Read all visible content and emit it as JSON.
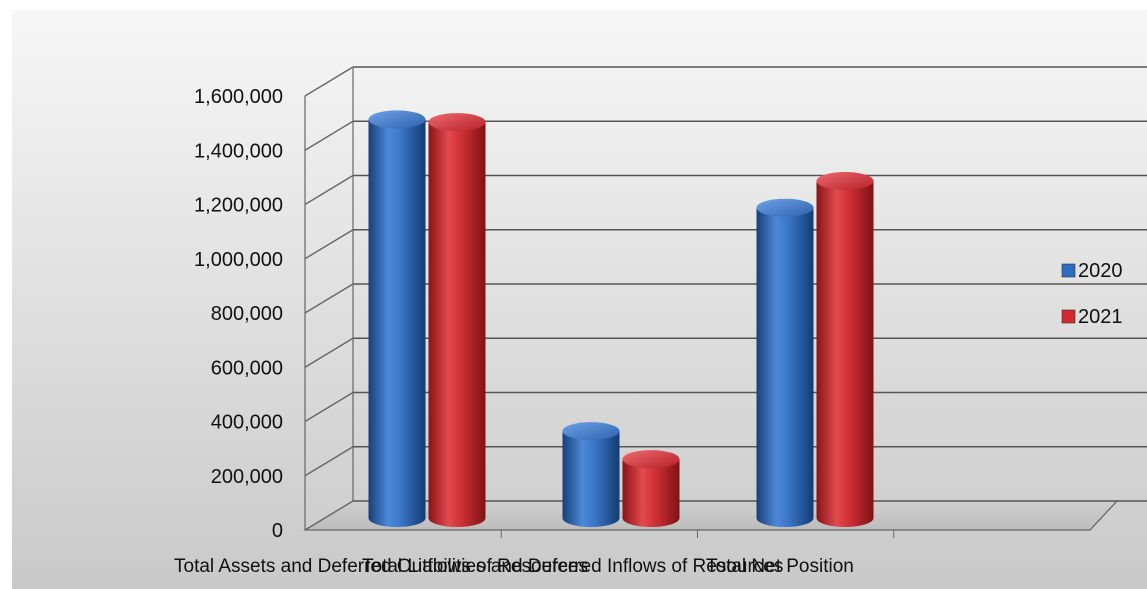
{
  "chart_data": {
    "type": "bar",
    "categories": [
      "Total Assets and Deferred Outflows of Resources",
      "Total Liabilities and Deferred Inflows of Resources",
      "Total Net Position"
    ],
    "series": [
      {
        "name": "2020",
        "values": [
          1490000,
          325000,
          1160000
        ],
        "color": "#2f6bbf"
      },
      {
        "name": "2021",
        "values": [
          1480000,
          220000,
          1260000
        ],
        "color": "#d02a30"
      }
    ],
    "y_ticks": [
      "0",
      "200,000",
      "400,000",
      "600,000",
      "800,000",
      "1,000,000",
      "1,200,000",
      "1,400,000",
      "1,600,000"
    ],
    "ylim": [
      0,
      1600000
    ],
    "grid": true,
    "legend_position": "right",
    "style": "3d-cylinder"
  }
}
